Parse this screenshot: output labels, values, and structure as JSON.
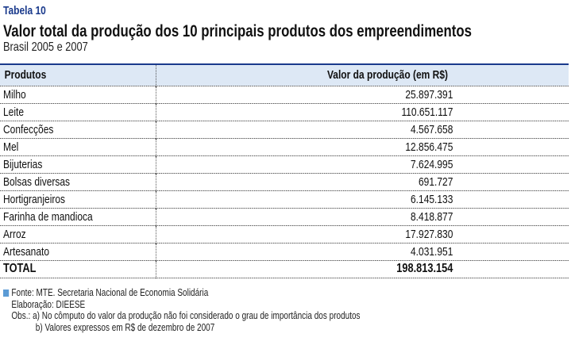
{
  "table_label": "Tabela 10",
  "title": "Valor total da produção dos 10 principais produtos dos empreendimentos",
  "subtitle": "Brasil 2005 e 2007",
  "columns": [
    "Produtos",
    "Valor da produção (em R$)"
  ],
  "rows": [
    {
      "produto": "Milho",
      "valor": "25.897.391"
    },
    {
      "produto": "Leite",
      "valor": "110.651.117"
    },
    {
      "produto": "Confecções",
      "valor": "4.567.658"
    },
    {
      "produto": "Mel",
      "valor": "12.856.475"
    },
    {
      "produto": "Bijuterias",
      "valor": "7.624.995"
    },
    {
      "produto": "Bolsas diversas",
      "valor": "691.727"
    },
    {
      "produto": "Hortigranjeiros",
      "valor": "6.145.133"
    },
    {
      "produto": "Farinha de mandioca",
      "valor": "8.418.877"
    },
    {
      "produto": "Arroz",
      "valor": "17.927.830"
    },
    {
      "produto": "Artesanato",
      "valor": "4.031.951"
    }
  ],
  "total": {
    "label": "TOTAL",
    "valor": "198.813.154"
  },
  "footer": {
    "fonte": "Fonte: MTE. Secretaria Nacional de Economia Solidária",
    "elaboracao": "Elaboração: DIEESE",
    "obs_a": "Obs.: a) No cômputo do valor da produção não foi considerado o grau de importância dos produtos",
    "obs_b": "b) Valores expressos em R$ de dezembro de 2007"
  },
  "colors": {
    "accent": "#1a3a8c",
    "header_bg": "#dde8f5",
    "marker": "#5b9bd5"
  }
}
